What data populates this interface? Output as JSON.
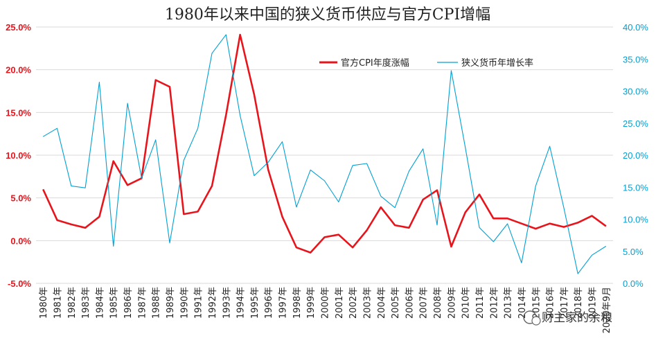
{
  "chart_data": {
    "type": "line",
    "title": "1980年以来中国的狭义货币供应与官方CPI增幅",
    "categories": [
      "1980年",
      "1981年",
      "1982年",
      "1983年",
      "1984年",
      "1985年",
      "1986年",
      "1987年",
      "1988年",
      "1989年",
      "1990年",
      "1991年",
      "1992年",
      "1993年",
      "1994年",
      "1995年",
      "1996年",
      "1997年",
      "1998年",
      "1999年",
      "2000年",
      "2001年",
      "2002年",
      "2003年",
      "2004年",
      "2005年",
      "2006年",
      "2007年",
      "2008年",
      "2009年",
      "2010年",
      "2011年",
      "2012年",
      "2013年",
      "2014年",
      "2015年",
      "2016年",
      "2017年",
      "2018年",
      "2019年",
      "2020年9月"
    ],
    "left_axis": {
      "min": -5,
      "max": 25,
      "ticks": [
        "-5.0%",
        "0.0%",
        "5.0%",
        "10.0%",
        "15.0%",
        "20.0%",
        "25.0%"
      ],
      "color": "#e8141b"
    },
    "right_axis": {
      "min": 0,
      "max": 40,
      "ticks": [
        "0.0%",
        "5.0%",
        "10.0%",
        "15.0%",
        "20.0%",
        "25.0%",
        "30.0%",
        "35.0%",
        "40.0%"
      ],
      "color": "#00a0d2"
    },
    "grid": "horizontal",
    "legend_position": "top-right",
    "series": [
      {
        "name": "官方CPI年度涨幅",
        "axis": "left",
        "color": "#e8141b",
        "values": [
          6.0,
          2.4,
          1.9,
          1.5,
          2.8,
          9.3,
          6.5,
          7.3,
          18.8,
          18.0,
          3.1,
          3.4,
          6.4,
          14.7,
          24.1,
          17.1,
          8.3,
          2.8,
          -0.8,
          -1.4,
          0.4,
          0.7,
          -0.8,
          1.2,
          3.9,
          1.8,
          1.5,
          4.8,
          5.9,
          -0.7,
          3.3,
          5.4,
          2.6,
          2.6,
          2.0,
          1.4,
          2.0,
          1.6,
          2.1,
          2.9,
          1.7
        ]
      },
      {
        "name": "狭义货币年增长率",
        "axis": "right",
        "color": "#00a0d2",
        "values": [
          22.9,
          24.2,
          15.2,
          14.9,
          31.4,
          5.8,
          28.1,
          16.4,
          22.4,
          6.3,
          19.2,
          24.2,
          35.9,
          38.8,
          26.2,
          16.8,
          18.9,
          22.1,
          11.9,
          17.7,
          16.0,
          12.7,
          18.4,
          18.7,
          13.6,
          11.8,
          17.5,
          21.0,
          9.1,
          33.2,
          21.2,
          8.7,
          6.5,
          9.3,
          3.2,
          15.2,
          21.4,
          11.8,
          1.5,
          4.4,
          5.8
        ]
      }
    ]
  },
  "watermark": "财主家的余粮"
}
